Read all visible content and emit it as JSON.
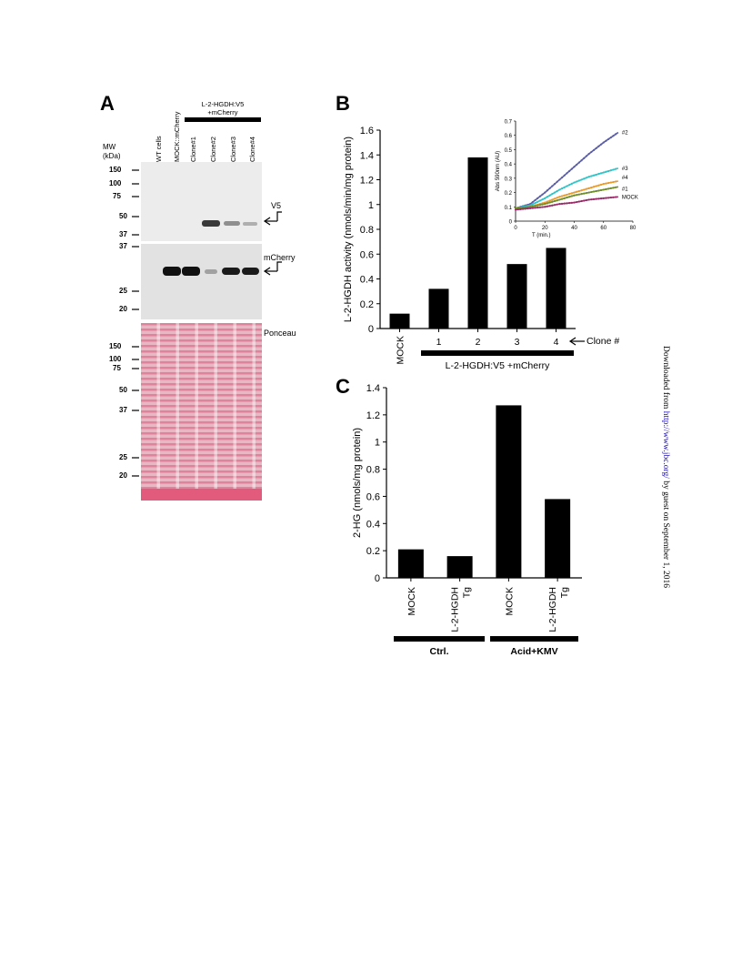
{
  "panels": {
    "a": {
      "letter": "A",
      "mw_header": [
        "MW",
        "(kDa)"
      ],
      "lanes": [
        "WT cells",
        "MOCK::mCherry",
        "Clone#1",
        "Clone#2",
        "Clone#3",
        "Clone#4"
      ],
      "construct_label": [
        "L-2-HGDH:V5",
        "+mCherry"
      ],
      "blot1": {
        "label": "V5",
        "markers": [
          "150",
          "100",
          "75",
          "50",
          "37"
        ]
      },
      "blot2": {
        "label": "mCherry",
        "markers": [
          "37",
          "25",
          "20"
        ]
      },
      "blot3": {
        "label": "Ponceau",
        "markers": [
          "150",
          "100",
          "75",
          "50",
          "37",
          "25",
          "20"
        ]
      },
      "colors": {
        "ponceau": "#e0849a",
        "film": "#ececec"
      }
    },
    "b": {
      "letter": "B",
      "group_label": "L-2-HGDH:V5 +mCherry",
      "clone_label": "Clone #"
    },
    "c": {
      "letter": "C",
      "groups": [
        "Ctrl.",
        "Acid+KMV"
      ]
    }
  },
  "chart_data": [
    {
      "id": "b_main",
      "type": "bar",
      "categories": [
        "MOCK",
        "1",
        "2",
        "3",
        "4"
      ],
      "values": [
        0.12,
        0.32,
        1.38,
        0.52,
        0.65
      ],
      "ylabel": "L-2-HGDH activity (nmols/min/mg protein)",
      "ylim": [
        0,
        1.6
      ],
      "yticks": [
        "0",
        "0.2",
        "0.4",
        "0.6",
        "0.8",
        "1",
        "1.2",
        "1.4",
        "1.6"
      ],
      "grid": false
    },
    {
      "id": "b_inset",
      "type": "line",
      "xlabel": "T (min.)",
      "ylabel": "Abs 590nm (AU)",
      "xlim": [
        0,
        80
      ],
      "ylim": [
        0,
        0.7
      ],
      "xticks": [
        "0",
        "20",
        "40",
        "60",
        "80"
      ],
      "yticks": [
        "0",
        "0.1",
        "0.2",
        "0.3",
        "0.4",
        "0.5",
        "0.6",
        "0.7"
      ],
      "series": [
        {
          "name": "#2",
          "color": "#5b5ea6",
          "x": [
            0,
            10,
            20,
            30,
            40,
            50,
            60,
            70
          ],
          "y": [
            0.09,
            0.12,
            0.2,
            0.29,
            0.38,
            0.47,
            0.55,
            0.62
          ]
        },
        {
          "name": "#3",
          "color": "#2ec4c8",
          "x": [
            0,
            10,
            20,
            30,
            40,
            50,
            60,
            70
          ],
          "y": [
            0.09,
            0.11,
            0.16,
            0.22,
            0.27,
            0.31,
            0.34,
            0.37
          ]
        },
        {
          "name": "#4",
          "color": "#e89a2c",
          "x": [
            0,
            10,
            20,
            30,
            40,
            50,
            60,
            70
          ],
          "y": [
            0.09,
            0.1,
            0.13,
            0.17,
            0.2,
            0.23,
            0.26,
            0.28
          ]
        },
        {
          "name": "#1",
          "color": "#6f8f2a",
          "x": [
            0,
            10,
            20,
            30,
            40,
            50,
            60,
            70
          ],
          "y": [
            0.09,
            0.1,
            0.12,
            0.15,
            0.18,
            0.2,
            0.22,
            0.24
          ]
        },
        {
          "name": "MOCK",
          "color": "#9b2c6a",
          "x": [
            0,
            10,
            20,
            30,
            40,
            50,
            60,
            70
          ],
          "y": [
            0.08,
            0.09,
            0.1,
            0.12,
            0.13,
            0.15,
            0.16,
            0.17
          ]
        }
      ]
    },
    {
      "id": "c_main",
      "type": "bar",
      "categories": [
        "MOCK",
        "L-2-HGDH Tg",
        "MOCK",
        "L-2-HGDH Tg"
      ],
      "values": [
        0.21,
        0.16,
        1.27,
        0.58
      ],
      "ylabel": "2-HG (nmols/mg protein)",
      "ylim": [
        0,
        1.4
      ],
      "yticks": [
        "0",
        "0.2",
        "0.4",
        "0.6",
        "0.8",
        "1",
        "1.2",
        "1.4"
      ],
      "grid": false
    }
  ],
  "footer": {
    "side_prefix": "Downloaded from ",
    "side_link": "http://www.jbc.org/",
    "side_suffix": " by guest on September 1, 2016"
  }
}
